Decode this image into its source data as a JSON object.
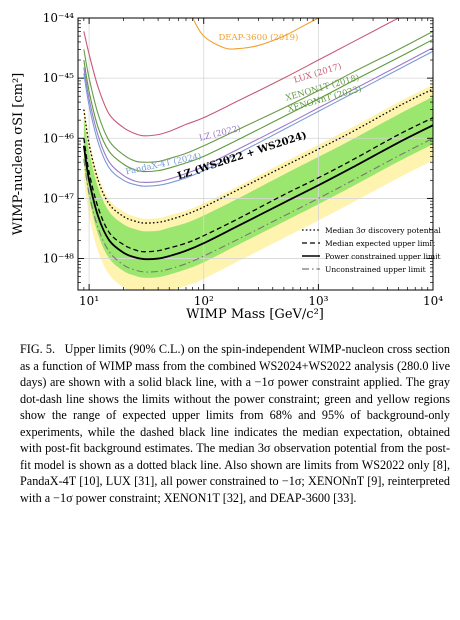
{
  "chart_data": {
    "type": "line",
    "x_scale": "log",
    "y_scale": "log",
    "xlim": [
      8,
      10000
    ],
    "ylim": [
      3e-49,
      1e-44
    ],
    "xlabel": "WIMP Mass [GeV/c²]",
    "ylabel": "WIMP-nucleon σSI [cm²]",
    "xticks": [
      "10¹",
      "10²",
      "10³",
      "10⁴"
    ],
    "yticks": [
      "10⁻⁴⁴",
      "10⁻⁴⁵",
      "10⁻⁴⁶",
      "10⁻⁴⁷",
      "10⁻⁴⁸"
    ],
    "x": [
      9,
      10,
      12,
      15,
      20,
      25,
      30,
      40,
      50,
      70,
      100,
      200,
      500,
      1000,
      2000,
      5000,
      10000
    ],
    "series": [
      {
        "key": "deap",
        "name": "DEAP-3600 (2019)",
        "color": "#f0a030",
        "style": "solid",
        "points": [
          [
            80,
            1e-44
          ],
          [
            100,
            5e-45
          ],
          [
            150,
            3.2e-45
          ],
          [
            200,
            3.1e-45
          ],
          [
            300,
            3.5e-45
          ],
          [
            500,
            5e-45
          ],
          [
            700,
            7e-45
          ],
          [
            1000,
            1e-44
          ]
        ]
      },
      {
        "key": "lux",
        "name": "LUX (2017)",
        "color": "#c85a78",
        "style": "solid",
        "values": [
          6e-45,
          2.5e-45,
          7e-46,
          2.5e-46,
          1.5e-46,
          1.2e-46,
          1.1e-46,
          1.15e-46,
          1.3e-46,
          1.7e-46,
          2.2e-46,
          4.2e-46,
          1e-45,
          2e-45,
          4e-45,
          1e-44,
          2e-44
        ]
      },
      {
        "key": "xenon1t",
        "name": "XENON1T (2018)",
        "color": "#6a9a4a",
        "style": "solid",
        "values": [
          3e-45,
          1e-45,
          2.5e-46,
          9e-47,
          5.3e-47,
          4.2e-47,
          4e-47,
          4.1e-47,
          4.6e-47,
          5.6e-47,
          7.5e-47,
          1.4e-46,
          3.2e-46,
          6.2e-46,
          1.25e-45,
          3e-45,
          6e-45
        ]
      },
      {
        "key": "xenonnt",
        "name": "XENONnT (2023)",
        "color": "#5a9a3a",
        "style": "solid",
        "values": [
          2e-45,
          6e-46,
          1.5e-46,
          6e-47,
          3.7e-47,
          3e-47,
          2.8e-47,
          2.9e-47,
          3.2e-47,
          3.9e-47,
          5e-47,
          9.5e-47,
          2.3e-46,
          4.5e-46,
          9e-46,
          2.2e-45,
          4.4e-45
        ]
      },
      {
        "key": "lz2022",
        "name": "LZ (2022)",
        "color": "#9a7ac8",
        "style": "solid",
        "values": [
          1.5e-45,
          4.5e-46,
          1.1e-46,
          4e-47,
          2.4e-47,
          1.95e-47,
          1.85e-47,
          1.9e-47,
          2.1e-47,
          2.6e-47,
          3.4e-47,
          6.6e-47,
          1.6e-46,
          3.2e-46,
          6.4e-46,
          1.6e-45,
          3.2e-45
        ]
      },
      {
        "key": "pandax",
        "name": "PandaX-4T (2024)",
        "color": "#7a9ad8",
        "style": "solid",
        "values": [
          1.2e-45,
          3.5e-46,
          8.5e-47,
          3.2e-47,
          2e-47,
          1.7e-47,
          1.6e-47,
          1.65e-47,
          1.8e-47,
          2.2e-47,
          2.9e-47,
          5.6e-47,
          1.4e-46,
          2.8e-46,
          5.6e-46,
          1.4e-45,
          2.8e-45
        ]
      },
      {
        "key": "band2",
        "name": "",
        "color": "#fff3b0",
        "style": "fill",
        "lower": [
          2.1e-47,
          5.2e-48,
          1.3e-48,
          5.4e-49,
          3.3e-49,
          2.8e-49,
          2.55e-49,
          2.6e-49,
          2.9e-49,
          3.5e-49,
          4.6e-49,
          9e-49,
          2.2e-48,
          4.3e-48,
          8.6e-48,
          2.2e-47,
          4.3e-47
        ],
        "upper": [
          3.5e-46,
          9.5e-47,
          2.4e-47,
          9.5e-48,
          6e-48,
          5e-48,
          4.6e-48,
          4.7e-48,
          5.2e-48,
          6.3e-48,
          8.3e-48,
          1.6e-47,
          4e-47,
          7.8e-47,
          1.55e-46,
          4e-46,
          7.8e-46
        ]
      },
      {
        "key": "band1",
        "name": "",
        "color": "#9be66e",
        "style": "fill",
        "lower": [
          4e-47,
          1e-47,
          2.5e-48,
          1e-48,
          6.2e-49,
          5.2e-49,
          4.8e-49,
          4.9e-49,
          5.4e-49,
          6.6e-49,
          8.7e-49,
          1.7e-48,
          4.1e-48,
          8e-48,
          1.6e-47,
          4.1e-47,
          8e-47
        ],
        "upper": [
          2.2e-46,
          6e-47,
          1.5e-47,
          6e-48,
          3.7e-48,
          3.1e-48,
          2.85e-48,
          2.9e-48,
          3.25e-48,
          3.9e-48,
          5.2e-48,
          1e-47,
          2.5e-47,
          4.9e-47,
          9.7e-47,
          2.5e-46,
          4.9e-46
        ]
      },
      {
        "key": "unconstrained",
        "name": "Unconstrained upper limit",
        "color": "#777777",
        "style": "dashdot",
        "values": [
          4.5e-47,
          1.2e-47,
          3.2e-48,
          1.3e-48,
          7.8e-49,
          6.5e-49,
          6e-49,
          6.1e-49,
          6.7e-49,
          8.2e-49,
          1.1e-48,
          2.1e-48,
          5.1e-48,
          1e-47,
          2e-47,
          5.1e-47,
          1e-46
        ]
      },
      {
        "key": "power",
        "name": "Power constrained upper limit",
        "color": "#000000",
        "style": "solid",
        "values": [
          7.5e-47,
          2e-47,
          5e-48,
          2e-48,
          1.25e-48,
          1.05e-48,
          9.8e-49,
          1e-48,
          1.1e-48,
          1.35e-48,
          1.8e-48,
          3.5e-48,
          8.5e-48,
          1.65e-47,
          3.3e-47,
          8.5e-47,
          1.65e-46
        ]
      },
      {
        "key": "median",
        "name": "Median expected upper limit",
        "color": "#000000",
        "style": "dashed",
        "values": [
          1e-46,
          2.7e-47,
          7e-48,
          2.7e-48,
          1.7e-48,
          1.4e-48,
          1.3e-48,
          1.35e-48,
          1.5e-48,
          1.8e-48,
          2.4e-48,
          4.6e-48,
          1.15e-47,
          2.2e-47,
          4.4e-47,
          1.15e-46,
          2.2e-46
        ]
      },
      {
        "key": "discovery",
        "name": "Median 3σ discovery potential",
        "color": "#000000",
        "style": "dotted",
        "values": [
          3e-46,
          8e-47,
          2e-47,
          8e-48,
          5e-48,
          4.2e-48,
          3.9e-48,
          4e-48,
          4.4e-48,
          5.4e-48,
          7.2e-48,
          1.4e-47,
          3.4e-47,
          6.6e-47,
          1.3e-46,
          3.4e-46,
          6.6e-46
        ]
      }
    ],
    "annotations": [
      {
        "key": "deap",
        "text": "DEAP-3600 (2019)",
        "x": 300,
        "y": 4.3e-45,
        "color": "#f0a030"
      },
      {
        "key": "lux",
        "text": "LUX (2017)",
        "x": 1000,
        "y": 1.1e-45,
        "color": "#c85a78",
        "rotate": -17
      },
      {
        "key": "xenon1t",
        "text": "XENON1T (2018)",
        "x": 1100,
        "y": 6.3e-46,
        "color": "#6a9a4a",
        "rotate": -16
      },
      {
        "key": "xenonnt",
        "text": "XENONnT (2023)",
        "x": 1150,
        "y": 4.1e-46,
        "color": "#5a9a3a",
        "rotate": -16
      },
      {
        "key": "lz2022",
        "text": "LZ (2022)",
        "x": 140,
        "y": 1.1e-46,
        "color": "#9a7ac8",
        "rotate": -14
      },
      {
        "key": "pandax",
        "text": "PandaX-4T (2024)",
        "x": 45,
        "y": 3.4e-47,
        "color": "#7a9ad8",
        "rotate": -12
      },
      {
        "key": "lzcombo",
        "text": "LZ (WS2022 + WS2024)",
        "x": 220,
        "y": 4.6e-47,
        "color": "#000000",
        "rotate": -18,
        "bold": true
      }
    ],
    "legend_position": "bottom-right",
    "legend": [
      {
        "key": "discovery",
        "label": "Median 3σ discovery potential",
        "style": "dotted"
      },
      {
        "key": "median",
        "label": "Median expected upper limit",
        "style": "dashed"
      },
      {
        "key": "power",
        "label": "Power constrained upper limit",
        "style": "solid"
      },
      {
        "key": "unconstrained",
        "label": "Unconstrained upper limit",
        "style": "dashdot"
      }
    ]
  },
  "caption": {
    "label": "FIG. 5.",
    "text": "Upper limits (90% C.L.) on the spin-independent WIMP-nucleon cross section as a function of WIMP mass from the combined WS2024+WS2022 analysis (280.0 live days) are shown with a solid black line, with a −1σ power constraint applied. The gray dot-dash line shows the limits without the power constraint; green and yellow regions show the range of expected upper limits from 68% and 95% of background-only experiments, while the dashed black line indicates the median expectation, obtained with post-fit background estimates. The median 3σ observation potential from the post-fit model is shown as a dotted black line. Also shown are limits from WS2022 only [8], PandaX-4T [10], LUX [31], all power constrained to −1σ; XENONnT [9], reinterpreted with a −1σ power constraint; XENON1T [32], and DEAP-3600 [33]."
  }
}
